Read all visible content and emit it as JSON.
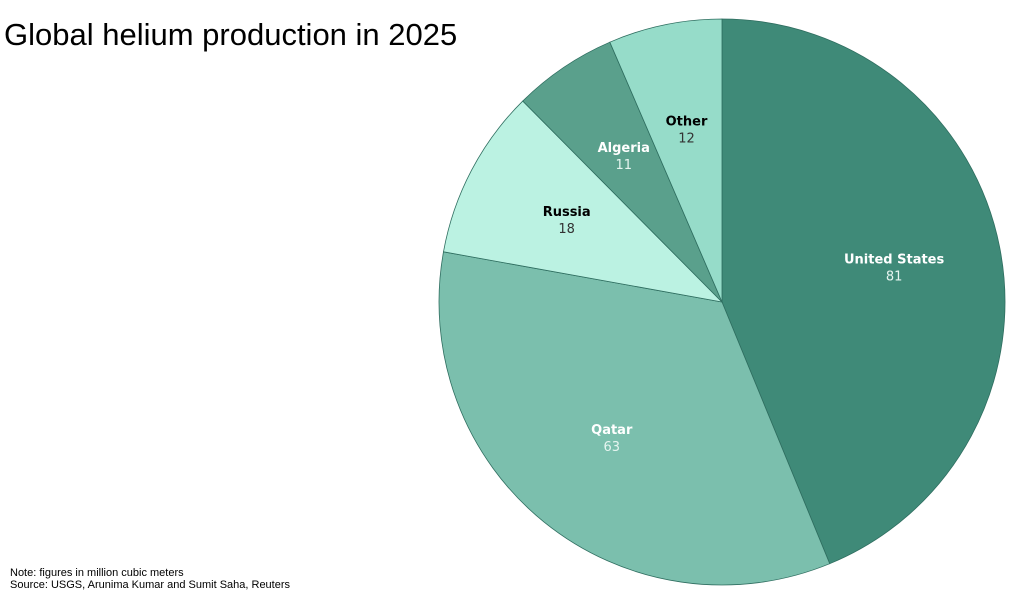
{
  "chart_data": {
    "type": "pie",
    "title": "Global helium production in 2025",
    "categories": [
      "United States",
      "Qatar",
      "Russia",
      "Algeria",
      "Other"
    ],
    "values": [
      81,
      63,
      18,
      11,
      12
    ],
    "colors": [
      "#3f8a78",
      "#7bbfad",
      "#bbf2e2",
      "#5aa08c",
      "#96dcc9"
    ],
    "note": "Note: figures in million cubic meters",
    "source": "Source: USGS, Arunima Kumar and Sumit Saha, Reuters"
  }
}
